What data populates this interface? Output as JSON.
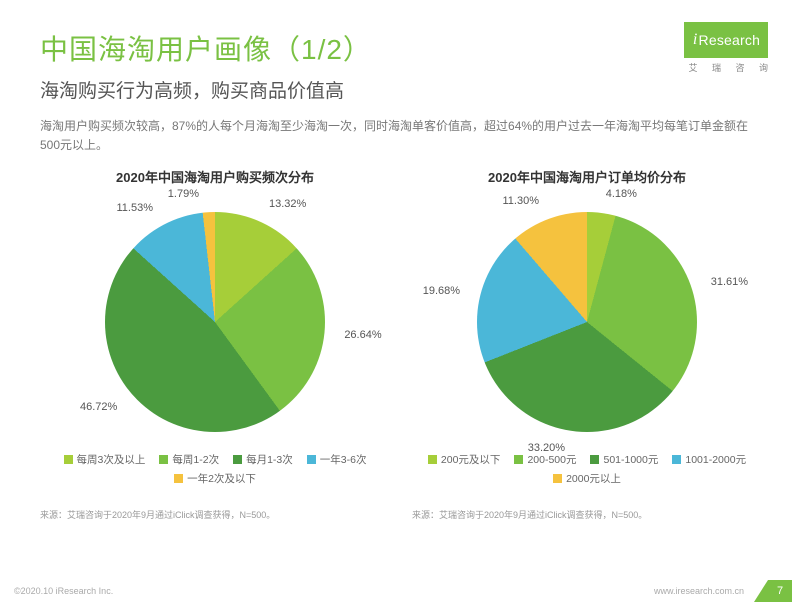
{
  "logo": {
    "text": "Research",
    "i": "i",
    "sub": "艾 瑞 咨 询"
  },
  "title": "中国海淘用户画像（1/2）",
  "subtitle": "海淘购买行为高频，购买商品价值高",
  "desc": "海淘用户购买频次较高，87%的人每个月海淘至少海淘一次，同时海淘单客价值高，超过64%的用户过去一年海淘平均每笔订单金额在500元以上。",
  "chart1": {
    "type": "pie",
    "title": "2020年中国海淘用户购买频次分布",
    "slices": [
      {
        "label": "每周3次及以上",
        "value": 13.32,
        "color": "#a6ce39",
        "textColor": "#555"
      },
      {
        "label": "每周1-2次",
        "value": 26.64,
        "color": "#7ac143",
        "textColor": "#555"
      },
      {
        "label": "每月1-3次",
        "value": 46.72,
        "color": "#4b9b3f",
        "textColor": "#555"
      },
      {
        "label": "一年3-6次",
        "value": 11.53,
        "color": "#4bb7d8",
        "textColor": "#555"
      },
      {
        "label": "一年2次及以下",
        "value": 1.79,
        "color": "#f5c23e",
        "textColor": "#555"
      }
    ],
    "source": "来源：艾瑞咨询于2020年9月通过iClick调查获得，N=500。",
    "label_fontsize": 11,
    "title_fontsize": 13
  },
  "chart2": {
    "type": "pie",
    "title": "2020年中国海淘用户订单均价分布",
    "slices": [
      {
        "label": "200元及以下",
        "value": 4.18,
        "color": "#a6ce39",
        "textColor": "#555"
      },
      {
        "label": "200-500元",
        "value": 31.61,
        "color": "#7ac143",
        "textColor": "#555"
      },
      {
        "label": "501-1000元",
        "value": 33.2,
        "color": "#4b9b3f",
        "textColor": "#555"
      },
      {
        "label": "1001-2000元",
        "value": 19.68,
        "color": "#4bb7d8",
        "textColor": "#555"
      },
      {
        "label": "2000元以上",
        "value": 11.3,
        "color": "#f5c23e",
        "textColor": "#555"
      }
    ],
    "source": "来源：艾瑞咨询于2020年9月通过iClick调查获得，N=500。",
    "label_fontsize": 11,
    "title_fontsize": 13
  },
  "footer": {
    "copyright": "©2020.10 iResearch Inc.",
    "domain": "www.iresearch.com.cn",
    "pageNo": "7"
  },
  "colors": {
    "accent": "#7ac143",
    "text_muted": "#777",
    "bg": "#ffffff"
  }
}
